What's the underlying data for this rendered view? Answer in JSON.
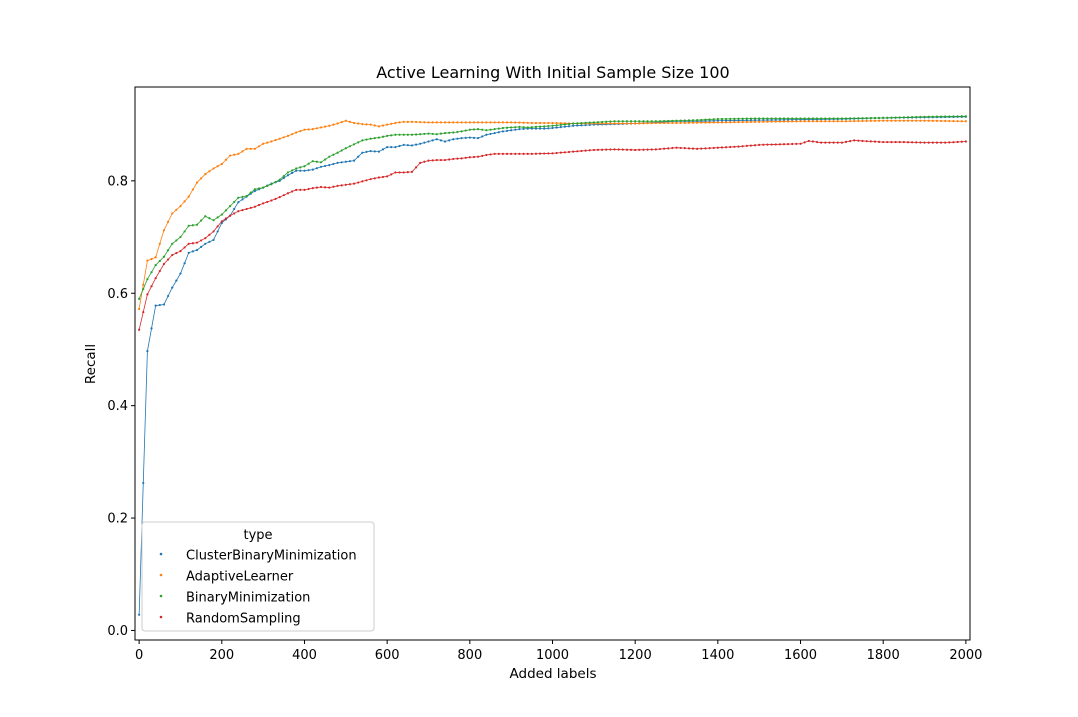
{
  "chart_data": {
    "type": "line",
    "title": "Active Learning With Initial Sample Size 100",
    "xlabel": "Added labels",
    "ylabel": "Recall",
    "xlim": [
      -10,
      2010
    ],
    "ylim": [
      -0.017,
      0.967
    ],
    "xticks": [
      0,
      200,
      400,
      600,
      800,
      1000,
      1200,
      1400,
      1600,
      1800,
      2000
    ],
    "xtick_labels": [
      "0",
      "200",
      "400",
      "600",
      "800",
      "1000",
      "1200",
      "1400",
      "1600",
      "1800",
      "2000"
    ],
    "yticks": [
      0.0,
      0.2,
      0.4,
      0.6,
      0.8
    ],
    "ytick_labels": [
      "0.0",
      "0.2",
      "0.4",
      "0.6",
      "0.8"
    ],
    "grid": false,
    "legend": {
      "title": "type",
      "position": "lower-left"
    },
    "series": [
      {
        "name": "ClusterBinaryMinimization",
        "color": "#1f77b4",
        "knots": [
          [
            0,
            0.028
          ],
          [
            20,
            0.497
          ],
          [
            40,
            0.578
          ],
          [
            60,
            0.58
          ],
          [
            80,
            0.61
          ],
          [
            100,
            0.635
          ],
          [
            120,
            0.672
          ],
          [
            140,
            0.677
          ],
          [
            160,
            0.688
          ],
          [
            180,
            0.695
          ],
          [
            200,
            0.725
          ],
          [
            220,
            0.738
          ],
          [
            240,
            0.762
          ],
          [
            260,
            0.772
          ],
          [
            280,
            0.782
          ],
          [
            300,
            0.788
          ],
          [
            320,
            0.795
          ],
          [
            340,
            0.8
          ],
          [
            360,
            0.81
          ],
          [
            380,
            0.818
          ],
          [
            400,
            0.818
          ],
          [
            420,
            0.82
          ],
          [
            440,
            0.825
          ],
          [
            460,
            0.828
          ],
          [
            480,
            0.832
          ],
          [
            500,
            0.834
          ],
          [
            520,
            0.836
          ],
          [
            540,
            0.85
          ],
          [
            560,
            0.853
          ],
          [
            580,
            0.852
          ],
          [
            600,
            0.86
          ],
          [
            620,
            0.86
          ],
          [
            640,
            0.864
          ],
          [
            660,
            0.863
          ],
          [
            680,
            0.866
          ],
          [
            700,
            0.87
          ],
          [
            720,
            0.874
          ],
          [
            740,
            0.87
          ],
          [
            760,
            0.874
          ],
          [
            780,
            0.876
          ],
          [
            800,
            0.877
          ],
          [
            820,
            0.876
          ],
          [
            840,
            0.882
          ],
          [
            860,
            0.885
          ],
          [
            880,
            0.888
          ],
          [
            900,
            0.89
          ],
          [
            920,
            0.892
          ],
          [
            940,
            0.893
          ],
          [
            960,
            0.893
          ],
          [
            980,
            0.893
          ],
          [
            1000,
            0.894
          ],
          [
            1050,
            0.898
          ],
          [
            1100,
            0.9
          ],
          [
            1150,
            0.901
          ],
          [
            1200,
            0.902
          ],
          [
            1250,
            0.904
          ],
          [
            1300,
            0.906
          ],
          [
            1350,
            0.906
          ],
          [
            1400,
            0.907
          ],
          [
            1500,
            0.908
          ],
          [
            1600,
            0.909
          ],
          [
            1700,
            0.91
          ],
          [
            1800,
            0.912
          ],
          [
            1900,
            0.913
          ],
          [
            2000,
            0.914
          ]
        ]
      },
      {
        "name": "AdaptiveLearner",
        "color": "#ff7f0e",
        "knots": [
          [
            0,
            0.572
          ],
          [
            20,
            0.658
          ],
          [
            40,
            0.664
          ],
          [
            60,
            0.712
          ],
          [
            80,
            0.742
          ],
          [
            100,
            0.755
          ],
          [
            120,
            0.772
          ],
          [
            140,
            0.797
          ],
          [
            160,
            0.812
          ],
          [
            180,
            0.822
          ],
          [
            200,
            0.83
          ],
          [
            220,
            0.845
          ],
          [
            240,
            0.848
          ],
          [
            260,
            0.857
          ],
          [
            280,
            0.857
          ],
          [
            300,
            0.866
          ],
          [
            320,
            0.87
          ],
          [
            340,
            0.875
          ],
          [
            360,
            0.88
          ],
          [
            380,
            0.886
          ],
          [
            400,
            0.891
          ],
          [
            420,
            0.892
          ],
          [
            440,
            0.895
          ],
          [
            460,
            0.898
          ],
          [
            480,
            0.902
          ],
          [
            500,
            0.907
          ],
          [
            520,
            0.903
          ],
          [
            540,
            0.901
          ],
          [
            560,
            0.9
          ],
          [
            580,
            0.897
          ],
          [
            600,
            0.9
          ],
          [
            620,
            0.903
          ],
          [
            640,
            0.905
          ],
          [
            660,
            0.905
          ],
          [
            700,
            0.904
          ],
          [
            750,
            0.904
          ],
          [
            800,
            0.904
          ],
          [
            850,
            0.904
          ],
          [
            900,
            0.904
          ],
          [
            950,
            0.903
          ],
          [
            1000,
            0.903
          ],
          [
            1050,
            0.902
          ],
          [
            1100,
            0.902
          ],
          [
            1150,
            0.902
          ],
          [
            1200,
            0.902
          ],
          [
            1250,
            0.903
          ],
          [
            1300,
            0.903
          ],
          [
            1400,
            0.904
          ],
          [
            1500,
            0.905
          ],
          [
            1600,
            0.906
          ],
          [
            1700,
            0.906
          ],
          [
            1800,
            0.907
          ],
          [
            1900,
            0.907
          ],
          [
            2000,
            0.906
          ]
        ]
      },
      {
        "name": "BinaryMinimization",
        "color": "#2ca02c",
        "knots": [
          [
            0,
            0.59
          ],
          [
            20,
            0.625
          ],
          [
            40,
            0.65
          ],
          [
            60,
            0.665
          ],
          [
            80,
            0.688
          ],
          [
            100,
            0.7
          ],
          [
            120,
            0.72
          ],
          [
            140,
            0.722
          ],
          [
            160,
            0.737
          ],
          [
            180,
            0.73
          ],
          [
            200,
            0.74
          ],
          [
            220,
            0.755
          ],
          [
            240,
            0.77
          ],
          [
            260,
            0.773
          ],
          [
            280,
            0.785
          ],
          [
            300,
            0.788
          ],
          [
            320,
            0.794
          ],
          [
            340,
            0.802
          ],
          [
            360,
            0.815
          ],
          [
            380,
            0.822
          ],
          [
            400,
            0.826
          ],
          [
            420,
            0.835
          ],
          [
            440,
            0.833
          ],
          [
            460,
            0.843
          ],
          [
            480,
            0.85
          ],
          [
            500,
            0.858
          ],
          [
            520,
            0.865
          ],
          [
            540,
            0.872
          ],
          [
            560,
            0.875
          ],
          [
            580,
            0.877
          ],
          [
            600,
            0.88
          ],
          [
            620,
            0.882
          ],
          [
            640,
            0.882
          ],
          [
            660,
            0.882
          ],
          [
            680,
            0.883
          ],
          [
            700,
            0.884
          ],
          [
            720,
            0.883
          ],
          [
            740,
            0.885
          ],
          [
            760,
            0.886
          ],
          [
            780,
            0.888
          ],
          [
            800,
            0.891
          ],
          [
            820,
            0.892
          ],
          [
            840,
            0.89
          ],
          [
            860,
            0.892
          ],
          [
            880,
            0.894
          ],
          [
            900,
            0.895
          ],
          [
            920,
            0.896
          ],
          [
            940,
            0.895
          ],
          [
            960,
            0.896
          ],
          [
            980,
            0.897
          ],
          [
            1000,
            0.898
          ],
          [
            1050,
            0.902
          ],
          [
            1100,
            0.904
          ],
          [
            1150,
            0.906
          ],
          [
            1200,
            0.906
          ],
          [
            1250,
            0.906
          ],
          [
            1300,
            0.907
          ],
          [
            1350,
            0.908
          ],
          [
            1400,
            0.91
          ],
          [
            1500,
            0.911
          ],
          [
            1600,
            0.911
          ],
          [
            1700,
            0.911
          ],
          [
            1800,
            0.912
          ],
          [
            1900,
            0.914
          ],
          [
            2000,
            0.915
          ]
        ]
      },
      {
        "name": "RandomSampling",
        "color": "#d62728",
        "knots": [
          [
            0,
            0.535
          ],
          [
            20,
            0.598
          ],
          [
            40,
            0.627
          ],
          [
            60,
            0.652
          ],
          [
            80,
            0.668
          ],
          [
            100,
            0.675
          ],
          [
            120,
            0.688
          ],
          [
            140,
            0.69
          ],
          [
            160,
            0.698
          ],
          [
            180,
            0.71
          ],
          [
            200,
            0.728
          ],
          [
            220,
            0.738
          ],
          [
            240,
            0.746
          ],
          [
            260,
            0.75
          ],
          [
            280,
            0.754
          ],
          [
            300,
            0.76
          ],
          [
            320,
            0.765
          ],
          [
            340,
            0.771
          ],
          [
            360,
            0.778
          ],
          [
            380,
            0.784
          ],
          [
            400,
            0.784
          ],
          [
            420,
            0.787
          ],
          [
            440,
            0.789
          ],
          [
            460,
            0.788
          ],
          [
            480,
            0.791
          ],
          [
            500,
            0.793
          ],
          [
            520,
            0.795
          ],
          [
            540,
            0.799
          ],
          [
            560,
            0.803
          ],
          [
            580,
            0.806
          ],
          [
            600,
            0.808
          ],
          [
            620,
            0.815
          ],
          [
            640,
            0.815
          ],
          [
            660,
            0.816
          ],
          [
            680,
            0.832
          ],
          [
            700,
            0.836
          ],
          [
            720,
            0.837
          ],
          [
            740,
            0.837
          ],
          [
            760,
            0.839
          ],
          [
            780,
            0.84
          ],
          [
            800,
            0.842
          ],
          [
            820,
            0.843
          ],
          [
            840,
            0.846
          ],
          [
            860,
            0.848
          ],
          [
            880,
            0.848
          ],
          [
            900,
            0.848
          ],
          [
            950,
            0.848
          ],
          [
            1000,
            0.849
          ],
          [
            1050,
            0.852
          ],
          [
            1100,
            0.855
          ],
          [
            1150,
            0.856
          ],
          [
            1200,
            0.855
          ],
          [
            1250,
            0.856
          ],
          [
            1300,
            0.859
          ],
          [
            1350,
            0.857
          ],
          [
            1400,
            0.859
          ],
          [
            1450,
            0.861
          ],
          [
            1500,
            0.864
          ],
          [
            1550,
            0.865
          ],
          [
            1600,
            0.866
          ],
          [
            1620,
            0.871
          ],
          [
            1650,
            0.868
          ],
          [
            1700,
            0.868
          ],
          [
            1730,
            0.872
          ],
          [
            1750,
            0.871
          ],
          [
            1800,
            0.869
          ],
          [
            1850,
            0.869
          ],
          [
            1900,
            0.868
          ],
          [
            1950,
            0.868
          ],
          [
            2000,
            0.87
          ]
        ]
      }
    ]
  }
}
